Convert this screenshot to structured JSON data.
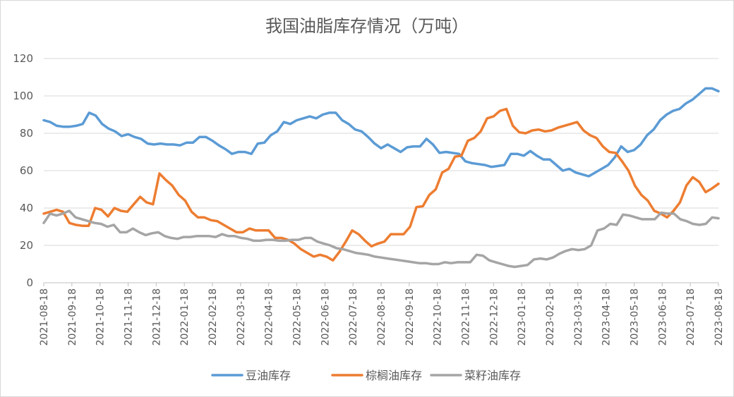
{
  "chart_data": {
    "type": "line",
    "title": "我国油脂库存情况（万吨）",
    "ylim": [
      0,
      120
    ],
    "yticks": [
      0,
      20,
      40,
      60,
      80,
      100,
      120
    ],
    "grid": true,
    "legend": "bottom",
    "x_tick_labels": [
      "2021-08-18",
      "2021-09-18",
      "2021-10-18",
      "2021-11-18",
      "2021-12-18",
      "2022-01-18",
      "2022-02-18",
      "2022-03-18",
      "2022-04-18",
      "2022-05-18",
      "2022-06-18",
      "2022-07-18",
      "2022-08-18",
      "2022-09-18",
      "2022-10-18",
      "2022-11-18",
      "2022-12-18",
      "2023-01-18",
      "2023-02-18",
      "2023-03-18",
      "2023-04-18",
      "2023-05-18",
      "2023-06-18",
      "2023-07-18",
      "2023-08-18"
    ],
    "series": [
      {
        "name": "豆油库存",
        "color": "#5b9bd5",
        "values": [
          87,
          86,
          84,
          83.5,
          83.5,
          84,
          85,
          91,
          89.5,
          85,
          82.5,
          81,
          78.5,
          79.5,
          78,
          77,
          74.5,
          74,
          74.5,
          74,
          74,
          73.5,
          75,
          75,
          78,
          78,
          76,
          73.5,
          71.5,
          69,
          70,
          70,
          69,
          74.5,
          75,
          79,
          81,
          86,
          85,
          87,
          88,
          89,
          88,
          90,
          91,
          91,
          87,
          85,
          82,
          81,
          78,
          74.5,
          72,
          74,
          72,
          70,
          72.5,
          73,
          73,
          77,
          74,
          69.5,
          70,
          69.5,
          69,
          65,
          64,
          63.5,
          63,
          62,
          62.5,
          63,
          69,
          69,
          68,
          70.5,
          68,
          66,
          66,
          63,
          60,
          61,
          59,
          58,
          57,
          59,
          61,
          63,
          67,
          73,
          70,
          71,
          74,
          79,
          82,
          87,
          90,
          92,
          93,
          96,
          98,
          101,
          104,
          104,
          102.5
        ]
      },
      {
        "name": "棕榈油库存",
        "color": "#ed7d31",
        "values": [
          37,
          38,
          39,
          38,
          32,
          31,
          30.5,
          30.5,
          40,
          39,
          35.5,
          40,
          38.5,
          38,
          42,
          46,
          43,
          42,
          58.5,
          55,
          52,
          47,
          44,
          38,
          35,
          35,
          33.5,
          33,
          31,
          29,
          27,
          27,
          29,
          28,
          28,
          28,
          24,
          24,
          23,
          21,
          18,
          16,
          14,
          15,
          14,
          12,
          16.5,
          22,
          28,
          26,
          22.5,
          19.5,
          21,
          22,
          26,
          26,
          26,
          30,
          40.5,
          41,
          47,
          50,
          59,
          61,
          67.5,
          68,
          76,
          77.5,
          81,
          88,
          89,
          92,
          93,
          84,
          80.5,
          80,
          81.5,
          82,
          81,
          81.5,
          83,
          84,
          85,
          86,
          81.5,
          79,
          77.5,
          73,
          70,
          69.5,
          65,
          60,
          52,
          47,
          44,
          38.5,
          37,
          35,
          38.5,
          43,
          52,
          56.5,
          54,
          48.5,
          50.5,
          53
        ]
      },
      {
        "name": "菜籽油库存",
        "color": "#a5a5a5",
        "values": [
          32,
          37,
          36,
          37,
          38.5,
          35,
          34,
          33,
          32,
          31.5,
          30,
          31,
          27,
          27,
          29,
          27,
          25.5,
          26.5,
          27,
          25,
          24,
          23.5,
          24.5,
          24.5,
          25,
          25,
          25,
          24.5,
          26,
          25,
          25,
          24,
          23.5,
          22.5,
          22.5,
          23,
          23,
          22.5,
          22.5,
          23,
          23,
          24,
          24,
          22,
          21,
          20,
          18.5,
          18,
          17,
          16,
          15.5,
          15,
          14,
          13.5,
          13,
          12.5,
          12,
          11.5,
          11,
          10.5,
          10.5,
          10,
          10,
          11,
          10.5,
          11,
          11,
          11,
          15,
          14.5,
          12,
          11,
          10,
          9,
          8.5,
          9,
          9.5,
          12.5,
          13,
          12.5,
          13.5,
          15.5,
          17,
          18,
          17.5,
          18,
          20,
          28,
          29,
          31.5,
          31,
          36.5,
          36,
          35,
          34,
          34,
          34,
          37.5,
          37,
          37,
          34,
          33,
          31.5,
          31,
          31.5,
          35,
          34.5
        ]
      }
    ]
  }
}
